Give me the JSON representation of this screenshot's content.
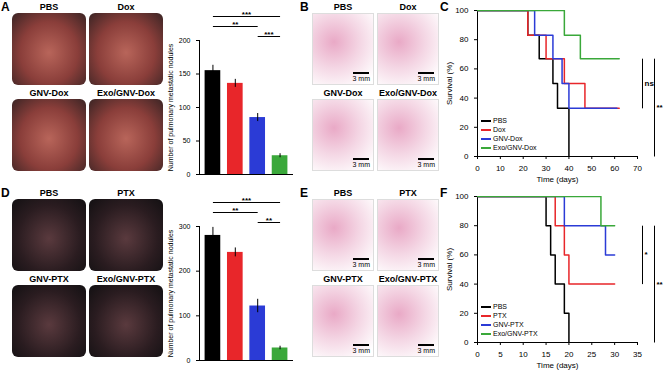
{
  "figure": {
    "panel_letters": [
      "A",
      "B",
      "C",
      "D",
      "E",
      "F"
    ],
    "images": {
      "A": [
        "PBS",
        "Dox",
        "GNV-Dox",
        "Exo/GNV-Dox"
      ],
      "B": [
        "PBS",
        "Dox",
        "GNV-Dox",
        "Exo/GNV-Dox"
      ],
      "D": [
        "PBS",
        "PTX",
        "GNV-PTX",
        "Exo/GNV-PTX"
      ],
      "E": [
        "PBS",
        "PTX",
        "GNV-PTX",
        "Exo/GNV-PTX"
      ]
    },
    "scale_bar": "3 mm"
  },
  "chart_data": [
    {
      "type": "bar",
      "y_label": "Number of pulmonary metastatic nodules",
      "categories": [
        "PBS",
        "Dox",
        "GNV-Dox",
        "Exo/GNV-Dox"
      ],
      "values": [
        155,
        136,
        85,
        28
      ],
      "errors": [
        8,
        6,
        6,
        3
      ],
      "colors": [
        "#000000",
        "#e8262a",
        "#2b3bd6",
        "#3aa83a"
      ],
      "ylim": [
        0,
        200
      ],
      "yticks": [
        0,
        50,
        100,
        150,
        200
      ],
      "tick_labels": "y",
      "comparisons": [
        {
          "pair": [
            "GNV-Dox",
            "Exo/GNV-Dox"
          ],
          "label": "***"
        },
        {
          "pair": [
            "PBS",
            "GNV-Dox"
          ],
          "label": "**"
        },
        {
          "pair": [
            "PBS",
            "Exo/GNV-Dox"
          ],
          "label": "***"
        }
      ]
    },
    {
      "type": "step",
      "x_label": "Time (days)",
      "y_label": "Survival (%)",
      "xlim": [
        0,
        70
      ],
      "xticks": [
        0,
        10,
        20,
        30,
        40,
        50,
        60,
        70
      ],
      "ylim": [
        0,
        100
      ],
      "yticks": [
        0,
        20,
        40,
        60,
        80,
        100
      ],
      "legend": "lower left",
      "series": [
        {
          "name": "PBS",
          "color": "#000000",
          "x": [
            0,
            22,
            27,
            33,
            35,
            40
          ],
          "values": [
            100,
            83,
            67,
            50,
            33,
            0
          ]
        },
        {
          "name": "Dox",
          "color": "#e8262a",
          "x": [
            0,
            22,
            30,
            38,
            47,
            62
          ],
          "values": [
            100,
            83,
            67,
            50,
            33,
            33
          ]
        },
        {
          "name": "GNV-Dox",
          "color": "#2b3bd6",
          "x": [
            0,
            25,
            33,
            37,
            40,
            61
          ],
          "values": [
            100,
            83,
            67,
            50,
            33,
            33
          ]
        },
        {
          "name": "Exo/GNV-Dox",
          "color": "#3aa83a",
          "x": [
            0,
            38,
            45,
            62
          ],
          "values": [
            100,
            83,
            67,
            67
          ]
        }
      ],
      "comparisons": [
        {
          "pair": [
            "Exo/GNV-Dox",
            "GNV-Dox"
          ],
          "label": "ns"
        },
        {
          "pair": [
            "Exo/GNV-Dox",
            "PBS"
          ],
          "label": "**"
        }
      ]
    },
    {
      "type": "bar",
      "y_label": "Number of pulmonary metastatic nodules",
      "categories": [
        "PBS",
        "PTX",
        "GNV-PTX",
        "Exo/GNV-PTX"
      ],
      "values": [
        280,
        242,
        122,
        28
      ],
      "errors": [
        18,
        10,
        15,
        4
      ],
      "colors": [
        "#000000",
        "#e8262a",
        "#2b3bd6",
        "#3aa83a"
      ],
      "ylim": [
        0,
        300
      ],
      "yticks": [
        0,
        100,
        200,
        300
      ],
      "tick_labels": "y",
      "comparisons": [
        {
          "pair": [
            "GNV-PTX",
            "Exo/GNV-PTX"
          ],
          "label": "**"
        },
        {
          "pair": [
            "PBS",
            "GNV-PTX"
          ],
          "label": "**"
        },
        {
          "pair": [
            "PBS",
            "Exo/GNV-PTX"
          ],
          "label": "***"
        }
      ]
    },
    {
      "type": "step",
      "x_label": "Time (days)",
      "y_label": "Survival (%)",
      "xlim": [
        0,
        35
      ],
      "xticks": [
        0,
        5,
        10,
        15,
        20,
        25,
        30,
        35
      ],
      "ylim": [
        0,
        100
      ],
      "yticks": [
        0,
        20,
        40,
        60,
        80,
        100
      ],
      "legend": "lower left",
      "series": [
        {
          "name": "PBS",
          "color": "#000000",
          "x": [
            0,
            15,
            16,
            17,
            19,
            20
          ],
          "values": [
            100,
            80,
            60,
            40,
            20,
            0
          ]
        },
        {
          "name": "PTX",
          "color": "#e8262a",
          "x": [
            0,
            17,
            19,
            20,
            30
          ],
          "values": [
            100,
            80,
            60,
            40,
            40
          ]
        },
        {
          "name": "GNV-PTX",
          "color": "#2b3bd6",
          "x": [
            0,
            19,
            28,
            30
          ],
          "values": [
            100,
            80,
            60,
            60
          ]
        },
        {
          "name": "Exo/GNV-PTX",
          "color": "#3aa83a",
          "x": [
            0,
            27,
            30
          ],
          "values": [
            100,
            80,
            80
          ]
        }
      ],
      "comparisons": [
        {
          "pair": [
            "Exo/GNV-PTX",
            "PTX"
          ],
          "label": "*"
        },
        {
          "pair": [
            "Exo/GNV-PTX",
            "PBS"
          ],
          "label": "**"
        }
      ]
    }
  ]
}
